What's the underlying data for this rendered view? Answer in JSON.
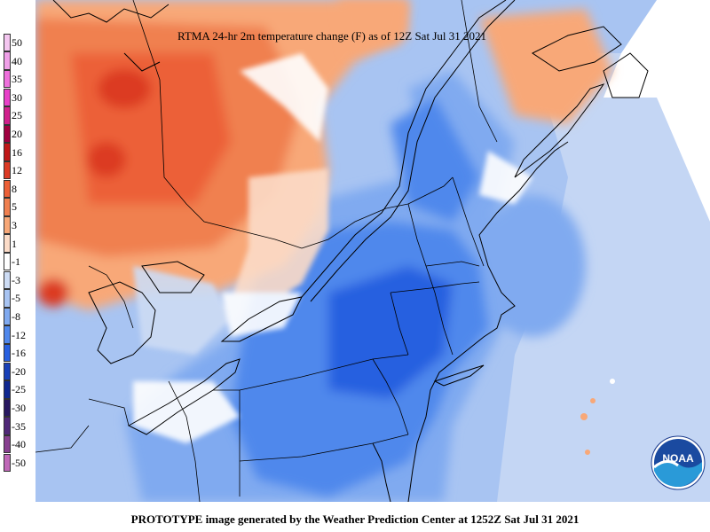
{
  "title": "RTMA 24-hr 2m temperature change (F) as of 12Z Sat Jul 31 2021",
  "footer": "PROTOTYPE image generated by the Weather Prediction Center at 1252Z Sat Jul 31 2021",
  "logo_text": "NOAA",
  "legend": {
    "labels": [
      "50",
      "40",
      "35",
      "30",
      "25",
      "20",
      "16",
      "12",
      "8",
      "5",
      "3",
      "1",
      "-1",
      "-3",
      "-5",
      "-8",
      "-12",
      "-16",
      "-20",
      "-25",
      "-30",
      "-35",
      "-40",
      "-50"
    ],
    "colors": [
      "#f4c6f0",
      "#f0a0e8",
      "#ee70dc",
      "#e840c8",
      "#d0208c",
      "#a00040",
      "#c01818",
      "#dc3a24",
      "#ec6038",
      "#f08050",
      "#f8a878",
      "#fcdcc8",
      "#ffffff",
      "#cddcf4",
      "#a8c4f2",
      "#80aaf0",
      "#5088ec",
      "#2860e0",
      "#1840b8",
      "#102890",
      "#281860",
      "#502878",
      "#884090",
      "#c068b8"
    ]
  }
}
